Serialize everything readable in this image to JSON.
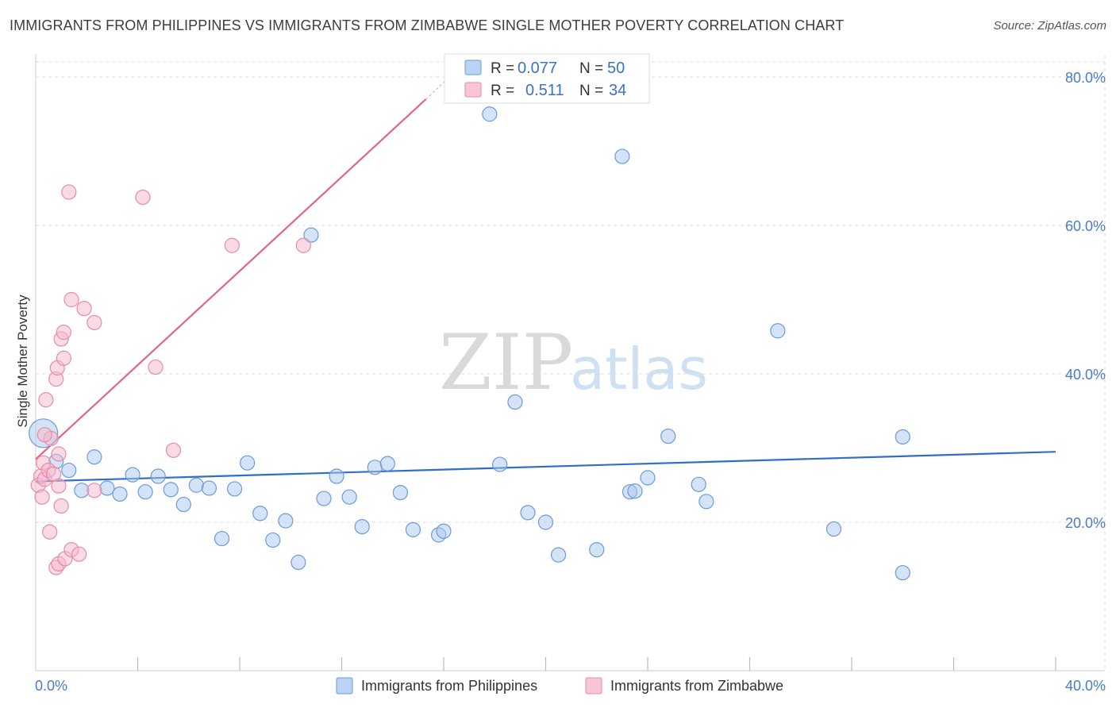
{
  "title": "IMMIGRANTS FROM PHILIPPINES VS IMMIGRANTS FROM ZIMBABWE SINGLE MOTHER POVERTY CORRELATION CHART",
  "source": "Source: ZipAtlas.com",
  "watermark": {
    "zip": "ZIP",
    "atlas": "atlas"
  },
  "colors": {
    "blue_fill": "#aac8f0",
    "blue_stroke": "#6b9bd8",
    "blue_line": "#2f6fcb",
    "pink_fill": "#f6b8cc",
    "pink_stroke": "#e88aa8",
    "pink_line": "#e0648e",
    "grid": "#dddddd",
    "axis": "#cccccc"
  },
  "legend_stats": [
    {
      "r_label": "R =",
      "r_value": "0.077",
      "n_label": "N =",
      "n_value": "50"
    },
    {
      "r_label": "R =",
      "r_value": "0.511",
      "n_label": "N =",
      "n_value": "34"
    }
  ],
  "chart_data": {
    "type": "scatter",
    "title": "IMMIGRANTS FROM PHILIPPINES VS IMMIGRANTS FROM ZIMBABWE SINGLE MOTHER POVERTY CORRELATION CHART",
    "xlabel": "",
    "ylabel": "Single Mother Poverty",
    "xlim": [
      0,
      40
    ],
    "ylim": [
      0,
      83
    ],
    "x_ticks_labeled": [
      {
        "value": 0,
        "label": "0.0%"
      },
      {
        "value": 40,
        "label": "40.0%"
      }
    ],
    "x_ticks_minor": [
      4,
      8,
      12,
      16,
      20,
      24,
      28,
      32,
      36,
      40
    ],
    "y_ticks": [
      {
        "value": 20,
        "label": "20.0%"
      },
      {
        "value": 40,
        "label": "40.0%"
      },
      {
        "value": 60,
        "label": "60.0%"
      },
      {
        "value": 80,
        "label": "80.0%"
      }
    ],
    "grid": true,
    "legend_position": "bottom",
    "series": [
      {
        "name": "Immigrants from Philippines",
        "color": "blue",
        "trend": {
          "x": [
            0,
            40
          ],
          "y": [
            25.5,
            29.5
          ]
        },
        "points": [
          [
            0.3,
            32.0,
            "big"
          ],
          [
            0.8,
            28.2
          ],
          [
            1.3,
            27.0
          ],
          [
            1.8,
            24.3
          ],
          [
            2.3,
            28.8
          ],
          [
            2.8,
            24.6
          ],
          [
            3.3,
            23.8
          ],
          [
            3.8,
            26.4
          ],
          [
            4.3,
            24.1
          ],
          [
            4.8,
            26.2
          ],
          [
            5.3,
            24.4
          ],
          [
            5.8,
            22.4
          ],
          [
            6.3,
            25.0
          ],
          [
            6.8,
            24.6
          ],
          [
            7.3,
            17.8
          ],
          [
            7.8,
            24.5
          ],
          [
            8.3,
            28.0
          ],
          [
            8.8,
            21.2
          ],
          [
            9.3,
            17.6
          ],
          [
            9.8,
            20.2
          ],
          [
            10.3,
            14.6
          ],
          [
            10.8,
            58.7
          ],
          [
            11.3,
            23.2
          ],
          [
            11.8,
            26.2
          ],
          [
            12.3,
            23.4
          ],
          [
            12.8,
            19.4
          ],
          [
            13.3,
            27.4
          ],
          [
            13.8,
            27.9
          ],
          [
            14.3,
            24.0
          ],
          [
            14.8,
            19.0
          ],
          [
            15.8,
            18.3
          ],
          [
            16.0,
            18.8
          ],
          [
            17.8,
            75.0
          ],
          [
            18.2,
            27.8
          ],
          [
            18.8,
            36.2
          ],
          [
            19.3,
            21.3
          ],
          [
            20.0,
            20.0
          ],
          [
            20.5,
            15.6
          ],
          [
            22.0,
            16.3
          ],
          [
            23.0,
            69.3
          ],
          [
            23.3,
            24.1
          ],
          [
            23.5,
            24.2
          ],
          [
            24.0,
            26.0
          ],
          [
            24.8,
            31.6
          ],
          [
            26.0,
            25.1
          ],
          [
            26.3,
            22.8
          ],
          [
            29.1,
            45.8
          ],
          [
            31.3,
            19.1
          ],
          [
            34.0,
            31.5
          ],
          [
            34.0,
            13.2
          ]
        ]
      },
      {
        "name": "Immigrants from Zimbabwe",
        "color": "pink",
        "trend": {
          "x": [
            0,
            15.3
          ],
          "y": [
            28.5,
            77.0
          ]
        },
        "points": [
          [
            0.1,
            25.0
          ],
          [
            0.2,
            26.2
          ],
          [
            0.25,
            23.4
          ],
          [
            0.3,
            28.0
          ],
          [
            0.35,
            25.8
          ],
          [
            0.4,
            36.5
          ],
          [
            0.5,
            27.0
          ],
          [
            0.55,
            18.7
          ],
          [
            0.6,
            31.3
          ],
          [
            0.7,
            26.5
          ],
          [
            0.8,
            13.9
          ],
          [
            0.8,
            39.3
          ],
          [
            0.85,
            40.8
          ],
          [
            0.9,
            14.4
          ],
          [
            0.9,
            29.2
          ],
          [
            0.9,
            24.9
          ],
          [
            1.0,
            22.2
          ],
          [
            1.0,
            44.7
          ],
          [
            1.1,
            45.6
          ],
          [
            1.1,
            42.1
          ],
          [
            1.15,
            15.1
          ],
          [
            1.3,
            64.5
          ],
          [
            1.4,
            16.3
          ],
          [
            1.4,
            50.0
          ],
          [
            1.7,
            15.7
          ],
          [
            1.9,
            48.8
          ],
          [
            2.3,
            46.9
          ],
          [
            2.3,
            24.3
          ],
          [
            4.2,
            63.8
          ],
          [
            4.7,
            40.9
          ],
          [
            5.4,
            29.7
          ],
          [
            7.7,
            57.3
          ],
          [
            10.5,
            57.3
          ],
          [
            0.35,
            31.8
          ]
        ]
      }
    ]
  }
}
